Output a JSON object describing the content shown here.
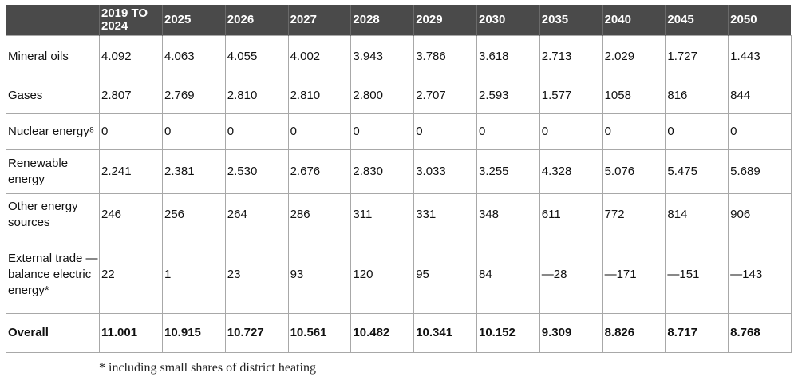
{
  "table": {
    "headers": [
      "",
      "2019 TO 2024",
      "2025",
      "2026",
      "2027",
      "2028",
      "2029",
      "2030",
      "2035",
      "2040",
      "2045",
      "2050"
    ],
    "rows": [
      {
        "label": "Mineral oils",
        "values": [
          "4.092",
          "4.063",
          "4.055",
          "4.002",
          "3.943",
          "3.786",
          "3.618",
          "2.713",
          "2.029",
          "1.727",
          "1.443"
        ]
      },
      {
        "label": "Gases",
        "values": [
          "2.807",
          "2.769",
          "2.810",
          "2.810",
          "2.800",
          "2.707",
          "2.593",
          "1.577",
          "1058",
          "816",
          "844"
        ]
      },
      {
        "label": "Nuclear energy⁸",
        "values": [
          "0",
          "0",
          "0",
          "0",
          "0",
          "0",
          "0",
          "0",
          "0",
          "0",
          "0"
        ]
      },
      {
        "label": "Renewable energy",
        "values": [
          "2.241",
          "2.381",
          "2.530",
          "2.676",
          "2.830",
          "3.033",
          "3.255",
          "4.328",
          "5.076",
          "5.475",
          "5.689"
        ]
      },
      {
        "label": "Other energy sources",
        "values": [
          "246",
          "256",
          "264",
          "286",
          "311",
          "331",
          "348",
          "611",
          "772",
          "814",
          "906"
        ]
      },
      {
        "label": "External trade —balance electric energy*",
        "values": [
          "22",
          "1",
          "23",
          "93",
          "120",
          "95",
          "84",
          "—28",
          "—171",
          "—151",
          "—143"
        ]
      },
      {
        "label": "Overall",
        "values": [
          "11.001",
          "10.915",
          "10.727",
          "10.561",
          "10.482",
          "10.341",
          "10.152",
          "9.309",
          "8.826",
          "8.717",
          "8.768"
        ]
      }
    ]
  },
  "footnote": "* including small shares of district heating"
}
